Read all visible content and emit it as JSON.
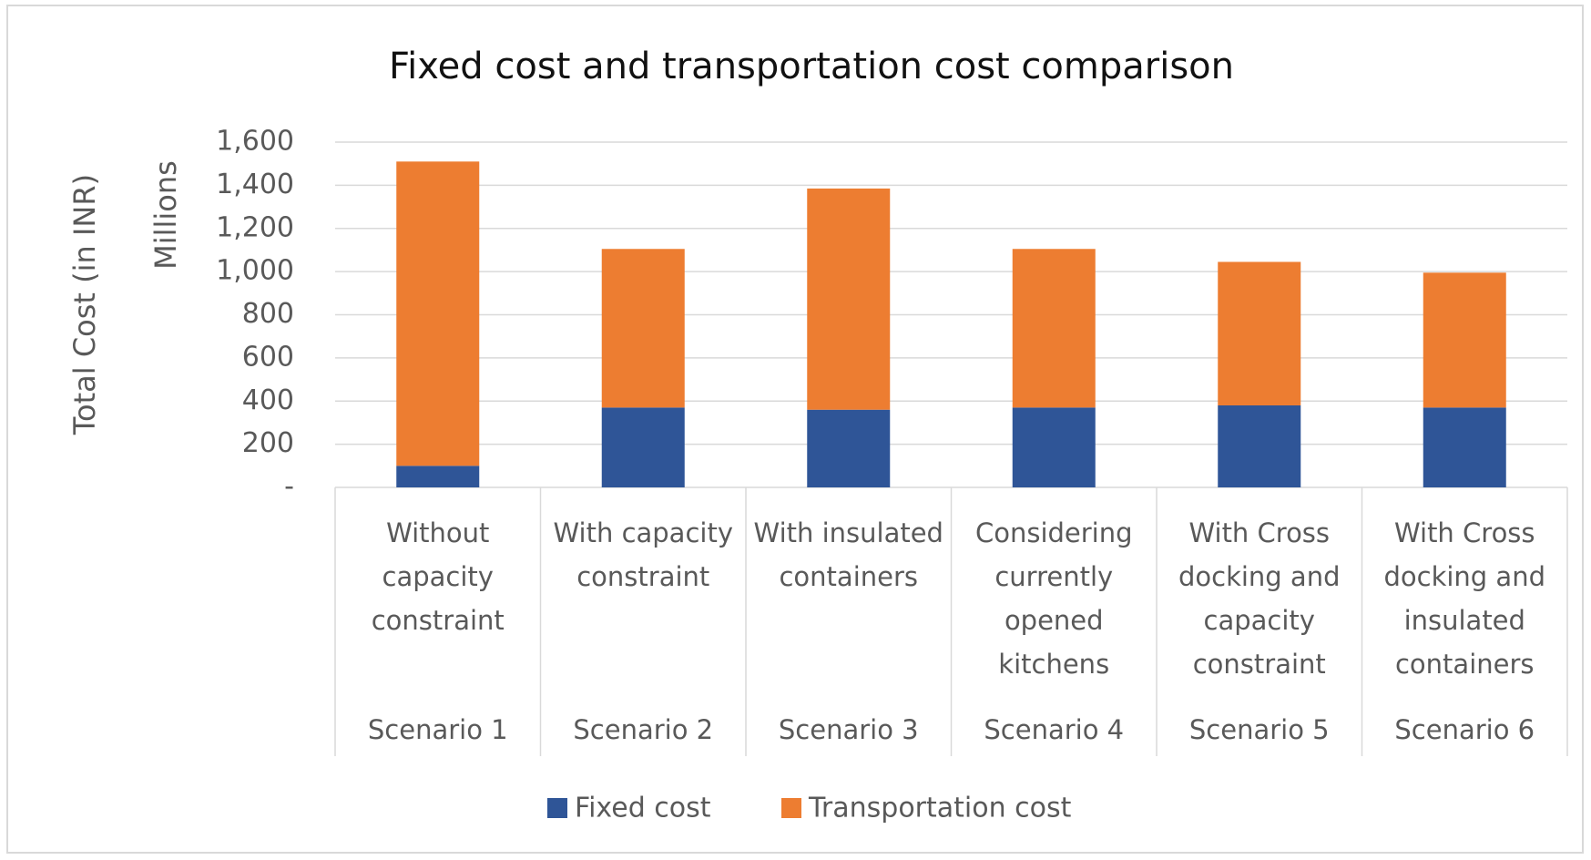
{
  "chart_data": {
    "type": "stacked_bar",
    "title": "Fixed cost and transportation cost comparison",
    "y_label": "Total Cost (in INR)",
    "y_units": "Millions",
    "categories": [
      "Without capacity constraint",
      "With capacity constraint",
      "With insulated containers",
      "Considering currently opened kitchens",
      "With Cross docking and capacity constraint",
      "With Cross docking and insulated containers"
    ],
    "groups": [
      "Scenario 1",
      "Scenario 2",
      "Scenario 3",
      "Scenario 4",
      "Scenario 5",
      "Scenario 6"
    ],
    "series": [
      {
        "name": "Fixed cost",
        "color": "#2f5597",
        "values": [
          100,
          370,
          360,
          370,
          380,
          370
        ]
      },
      {
        "name": "Transportation cost",
        "color": "#ed7d31",
        "values": [
          1410,
          735,
          1025,
          735,
          665,
          625
        ]
      }
    ],
    "ylim": [
      0,
      1600
    ],
    "yticks": [
      {
        "value": 0,
        "label": "-"
      },
      {
        "value": 200,
        "label": "200"
      },
      {
        "value": 400,
        "label": "400"
      },
      {
        "value": 600,
        "label": "600"
      },
      {
        "value": 800,
        "label": "800"
      },
      {
        "value": 1000,
        "label": "1,000"
      },
      {
        "value": 1200,
        "label": "1,200"
      },
      {
        "value": 1400,
        "label": "1,400"
      },
      {
        "value": 1600,
        "label": "1,600"
      }
    ],
    "grid": true,
    "legend": "bottom"
  }
}
